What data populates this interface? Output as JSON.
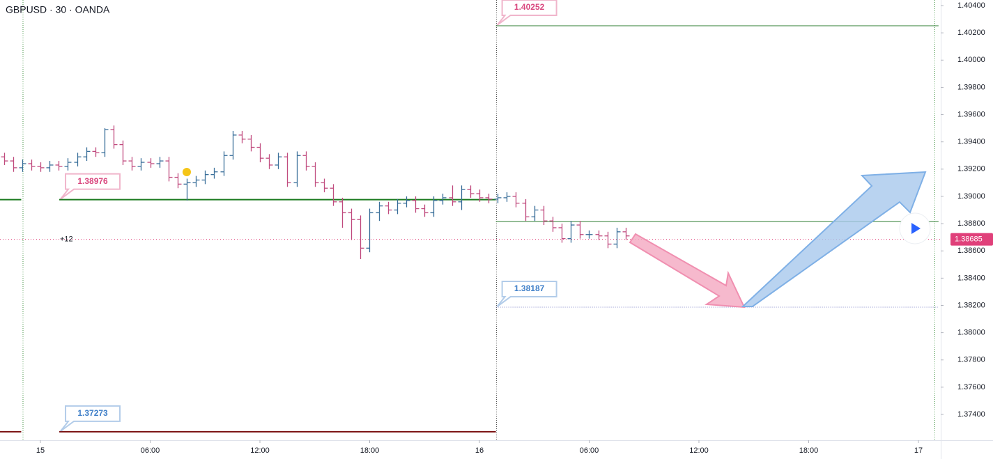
{
  "chart_data": {
    "type": "ohlc",
    "title": "GBPUSD · 30 · OANDA",
    "annotation": "+12",
    "up_color": "#3a6f9a",
    "down_color": "#c04b7e",
    "x": [
      -2,
      -1.5,
      -1,
      -0.5,
      0,
      0.5,
      1,
      1.5,
      2,
      2.5,
      3,
      3.5,
      4,
      4.5,
      5,
      5.5,
      6,
      6.5,
      7,
      7.5,
      8,
      8.5,
      9,
      9.5,
      10,
      10.5,
      11,
      11.5,
      12,
      12.5,
      13,
      13.5,
      14,
      14.5,
      15,
      15.5,
      16,
      16.5,
      17,
      17.5,
      18,
      18.5,
      19,
      19.5,
      20,
      20.5,
      21,
      21.5,
      22,
      22.5,
      23,
      23.5,
      24,
      24.5,
      25,
      25.5,
      26,
      26.5,
      27,
      27.5,
      28,
      28.5,
      29,
      29.5,
      30,
      30.5,
      31,
      31.5,
      32
    ],
    "open": [
      1.3929,
      1.3926,
      1.3921,
      1.3924,
      1.3922,
      1.3921,
      1.3923,
      1.3922,
      1.3925,
      1.3929,
      1.3933,
      1.3932,
      1.3949,
      1.3938,
      1.3926,
      1.3922,
      1.3925,
      1.3924,
      1.3926,
      1.3914,
      1.3909,
      1.391,
      1.3912,
      1.3916,
      1.3918,
      1.393,
      1.3945,
      1.3942,
      1.3936,
      1.3928,
      1.3923,
      1.3929,
      1.391,
      1.393,
      1.3922,
      1.391,
      1.3906,
      1.3896,
      1.3888,
      1.3883,
      1.3862,
      1.3888,
      1.3893,
      1.389,
      1.3895,
      1.3897,
      1.3891,
      1.3888,
      1.3897,
      1.3899,
      1.3896,
      1.3905,
      1.3902,
      1.3899,
      1.3898,
      1.3899,
      1.39,
      1.3895,
      1.3885,
      1.389,
      1.3882,
      1.3877,
      1.3869,
      1.3879,
      1.3872,
      1.3872,
      1.3871,
      1.3865,
      1.3874
    ],
    "high": [
      1.3932,
      1.3929,
      1.3927,
      1.3927,
      1.3925,
      1.3926,
      1.3926,
      1.3928,
      1.3932,
      1.3936,
      1.3936,
      1.395,
      1.3952,
      1.3941,
      1.3929,
      1.3928,
      1.3928,
      1.3929,
      1.3929,
      1.3917,
      1.3913,
      1.3915,
      1.3919,
      1.3921,
      1.3933,
      1.3948,
      1.3948,
      1.3945,
      1.3939,
      1.3931,
      1.3932,
      1.3932,
      1.3933,
      1.3933,
      1.3925,
      1.3913,
      1.3909,
      1.3899,
      1.3891,
      1.3886,
      1.3891,
      1.3896,
      1.3896,
      1.3898,
      1.39,
      1.39,
      1.3894,
      1.39,
      1.3902,
      1.3908,
      1.3908,
      1.3908,
      1.3905,
      1.3902,
      1.3902,
      1.3903,
      1.3903,
      1.3898,
      1.3893,
      1.3893,
      1.3885,
      1.388,
      1.3882,
      1.3882,
      1.3875,
      1.3875,
      1.3874,
      1.3877,
      1.3877
    ],
    "low": [
      1.3923,
      1.3918,
      1.3918,
      1.3919,
      1.3918,
      1.3918,
      1.3919,
      1.3919,
      1.3922,
      1.3926,
      1.3929,
      1.3929,
      1.3935,
      1.3923,
      1.3919,
      1.3919,
      1.3921,
      1.3921,
      1.3911,
      1.3906,
      1.3897,
      1.3907,
      1.3909,
      1.3913,
      1.3915,
      1.3927,
      1.3939,
      1.3933,
      1.3925,
      1.392,
      1.392,
      1.3907,
      1.3907,
      1.3919,
      1.3907,
      1.3903,
      1.3893,
      1.3877,
      1.3868,
      1.3854,
      1.3859,
      1.3882,
      1.3887,
      1.3887,
      1.3892,
      1.3888,
      1.3885,
      1.3885,
      1.3894,
      1.3893,
      1.389,
      1.3899,
      1.3896,
      1.3895,
      1.3895,
      1.3896,
      1.3892,
      1.3882,
      1.3882,
      1.3879,
      1.3874,
      1.3866,
      1.3866,
      1.3869,
      1.3869,
      1.3868,
      1.3862,
      1.3862,
      1.3868
    ],
    "close": [
      1.3926,
      1.3921,
      1.3924,
      1.3922,
      1.3921,
      1.3923,
      1.3922,
      1.3925,
      1.3929,
      1.3933,
      1.3932,
      1.3949,
      1.3938,
      1.3926,
      1.3922,
      1.3925,
      1.3924,
      1.3926,
      1.3914,
      1.3909,
      1.391,
      1.3912,
      1.3916,
      1.3918,
      1.393,
      1.3945,
      1.3942,
      1.3936,
      1.3928,
      1.3923,
      1.3929,
      1.391,
      1.393,
      1.3922,
      1.391,
      1.3906,
      1.3896,
      1.3888,
      1.3883,
      1.3862,
      1.3888,
      1.3893,
      1.389,
      1.3895,
      1.3897,
      1.3891,
      1.3888,
      1.3897,
      1.3899,
      1.3896,
      1.3905,
      1.3902,
      1.3899,
      1.3898,
      1.3899,
      1.39,
      1.3895,
      1.3885,
      1.389,
      1.3882,
      1.3877,
      1.3869,
      1.3879,
      1.3872,
      1.3872,
      1.3871,
      1.3865,
      1.3874,
      1.3871
    ],
    "xlim": [
      -2.21,
      49.22
    ],
    "ylim": [
      1.37211,
      1.40441
    ],
    "xticks": [
      {
        "value": 0,
        "label": "15"
      },
      {
        "value": 6,
        "label": "06:00"
      },
      {
        "value": 12,
        "label": "12:00"
      },
      {
        "value": 18,
        "label": "18:00"
      },
      {
        "value": 24,
        "label": "16"
      },
      {
        "value": 30,
        "label": "06:00"
      },
      {
        "value": 36,
        "label": "12:00"
      },
      {
        "value": 42,
        "label": "18:00"
      },
      {
        "value": 48,
        "label": "17"
      }
    ],
    "yticks": [
      {
        "value": 1.374,
        "label": "1.37400"
      },
      {
        "value": 1.376,
        "label": "1.37600"
      },
      {
        "value": 1.378,
        "label": "1.37800"
      },
      {
        "value": 1.38,
        "label": "1.38000"
      },
      {
        "value": 1.382,
        "label": "1.38200"
      },
      {
        "value": 1.384,
        "label": "1.38400"
      },
      {
        "value": 1.386,
        "label": "1.38600"
      },
      {
        "value": 1.388,
        "label": "1.38800"
      },
      {
        "value": 1.39,
        "label": "1.39000"
      },
      {
        "value": 1.392,
        "label": "1.39200"
      },
      {
        "value": 1.394,
        "label": "1.39400"
      },
      {
        "value": 1.396,
        "label": "1.39600"
      },
      {
        "value": 1.398,
        "label": "1.39800"
      },
      {
        "value": 1.4,
        "label": "1.40000"
      },
      {
        "value": 1.402,
        "label": "1.40200"
      },
      {
        "value": 1.404,
        "label": "1.40400"
      }
    ],
    "levels": [
      {
        "value": 1.40252,
        "x": [
          24.9,
          49.1
        ],
        "color": "#2e7d32",
        "width": 1,
        "tag": true,
        "tag_color": "#d9457d"
      },
      {
        "value": 1.38976,
        "x": [
          1.03,
          24.9
        ],
        "color": "#1b7a1f",
        "width": 2,
        "tag": true,
        "tag_color": "#d9457d"
      },
      {
        "value": 1.38815,
        "x": [
          24.9,
          49.1
        ],
        "color": "#2e7d32",
        "width": 1,
        "tag": false
      },
      {
        "value": 1.38187,
        "x": [
          24.9,
          49.1
        ],
        "color": "#7b7fc4",
        "width": 1,
        "tag": true,
        "tag_color": "#3f7fc8",
        "dash": true
      },
      {
        "value": 1.37273,
        "x": [
          1.03,
          24.9
        ],
        "color": "#7a1010",
        "width": 2,
        "tag": true,
        "tag_color": "#3f7fc8"
      },
      {
        "value": 1.38976,
        "x": [
          -2.21,
          -1.05
        ],
        "color": "#1b7a1f",
        "width": 2,
        "tag": false
      },
      {
        "value": 1.37273,
        "x": [
          -2.21,
          -1.05
        ],
        "color": "#7a1010",
        "width": 2,
        "tag": false
      }
    ],
    "last_price": 1.38685,
    "last_price_color": "#e0407a"
  }
}
